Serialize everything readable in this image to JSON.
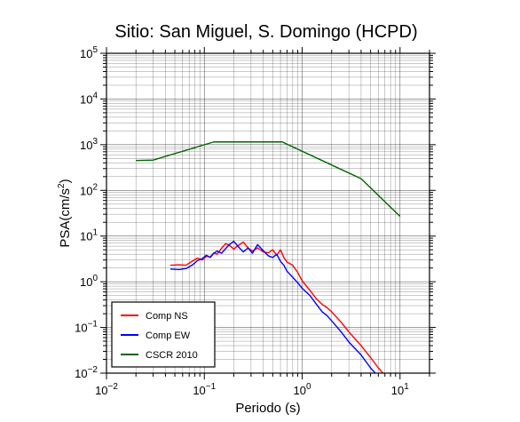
{
  "chart_data": {
    "type": "line",
    "title": "Sitio: San Miguel, S. Domingo (HCPD)",
    "xlabel": "Periodo (s)",
    "ylabel_base": "PSA(cm/s",
    "ylabel_sup": "2",
    "ylabel_tail": ")",
    "xscale": "log",
    "yscale": "log",
    "xlim": [
      0.01,
      20
    ],
    "ylim": [
      0.01,
      100000
    ],
    "grid": true,
    "legend_position": "bottom-left",
    "x_ticks": [
      {
        "base": "10",
        "exp": "−2",
        "value": 0.01
      },
      {
        "base": "10",
        "exp": "−1",
        "value": 0.1
      },
      {
        "base": "10",
        "exp": "0",
        "value": 1
      },
      {
        "base": "10",
        "exp": "1",
        "value": 10
      }
    ],
    "y_ticks": [
      {
        "base": "10",
        "exp": "−2",
        "value": 0.01
      },
      {
        "base": "10",
        "exp": "−1",
        "value": 0.1
      },
      {
        "base": "10",
        "exp": "0",
        "value": 1
      },
      {
        "base": "10",
        "exp": "1",
        "value": 10
      },
      {
        "base": "10",
        "exp": "2",
        "value": 100
      },
      {
        "base": "10",
        "exp": "3",
        "value": 1000
      },
      {
        "base": "10",
        "exp": "4",
        "value": 10000
      },
      {
        "base": "10",
        "exp": "5",
        "value": 100000
      }
    ],
    "series": [
      {
        "name": "Comp NS",
        "color": "#ff0000",
        "points": [
          [
            0.045,
            2.3
          ],
          [
            0.055,
            2.35
          ],
          [
            0.065,
            2.3
          ],
          [
            0.075,
            2.8
          ],
          [
            0.085,
            3.3
          ],
          [
            0.095,
            3.0
          ],
          [
            0.105,
            3.6
          ],
          [
            0.115,
            3.5
          ],
          [
            0.125,
            4.3
          ],
          [
            0.135,
            4.0
          ],
          [
            0.15,
            5.4
          ],
          [
            0.165,
            6.8
          ],
          [
            0.18,
            6.3
          ],
          [
            0.2,
            5.2
          ],
          [
            0.22,
            6.1
          ],
          [
            0.25,
            7.4
          ],
          [
            0.28,
            5.5
          ],
          [
            0.31,
            4.7
          ],
          [
            0.35,
            5.5
          ],
          [
            0.4,
            4.5
          ],
          [
            0.45,
            4.3
          ],
          [
            0.5,
            5.0
          ],
          [
            0.55,
            3.8
          ],
          [
            0.6,
            5.0
          ],
          [
            0.65,
            3.4
          ],
          [
            0.7,
            2.7
          ],
          [
            0.8,
            2.3
          ],
          [
            0.9,
            1.6
          ],
          [
            1.0,
            1.05
          ],
          [
            1.2,
            0.65
          ],
          [
            1.4,
            0.42
          ],
          [
            1.6,
            0.32
          ],
          [
            1.8,
            0.27
          ],
          [
            2.0,
            0.22
          ],
          [
            2.5,
            0.13
          ],
          [
            3.0,
            0.08
          ],
          [
            4.0,
            0.04
          ],
          [
            5.0,
            0.022
          ],
          [
            6.0,
            0.013
          ],
          [
            7.0,
            0.009
          ]
        ]
      },
      {
        "name": "Comp EW",
        "color": "#0000ff",
        "points": [
          [
            0.045,
            1.9
          ],
          [
            0.055,
            1.85
          ],
          [
            0.065,
            1.95
          ],
          [
            0.075,
            2.3
          ],
          [
            0.085,
            2.9
          ],
          [
            0.095,
            3.2
          ],
          [
            0.105,
            3.8
          ],
          [
            0.115,
            3.4
          ],
          [
            0.125,
            4.2
          ],
          [
            0.135,
            4.7
          ],
          [
            0.15,
            4.2
          ],
          [
            0.165,
            5.3
          ],
          [
            0.18,
            6.5
          ],
          [
            0.2,
            7.7
          ],
          [
            0.22,
            6.0
          ],
          [
            0.25,
            4.5
          ],
          [
            0.28,
            5.5
          ],
          [
            0.31,
            4.2
          ],
          [
            0.35,
            6.5
          ],
          [
            0.4,
            4.8
          ],
          [
            0.45,
            3.7
          ],
          [
            0.5,
            3.4
          ],
          [
            0.55,
            4.0
          ],
          [
            0.6,
            2.8
          ],
          [
            0.65,
            2.3
          ],
          [
            0.7,
            1.7
          ],
          [
            0.8,
            1.25
          ],
          [
            0.9,
            0.95
          ],
          [
            1.0,
            0.72
          ],
          [
            1.2,
            0.5
          ],
          [
            1.4,
            0.32
          ],
          [
            1.6,
            0.22
          ],
          [
            1.8,
            0.18
          ],
          [
            2.0,
            0.14
          ],
          [
            2.5,
            0.08
          ],
          [
            3.0,
            0.048
          ],
          [
            4.0,
            0.025
          ],
          [
            5.0,
            0.013
          ],
          [
            6.0,
            0.0085
          ]
        ]
      },
      {
        "name": "CSCR 2010",
        "color": "#006400",
        "points": [
          [
            0.02,
            450
          ],
          [
            0.03,
            460
          ],
          [
            0.125,
            1150
          ],
          [
            0.625,
            1150
          ],
          [
            4.0,
            180
          ],
          [
            10.0,
            27
          ]
        ]
      }
    ]
  }
}
